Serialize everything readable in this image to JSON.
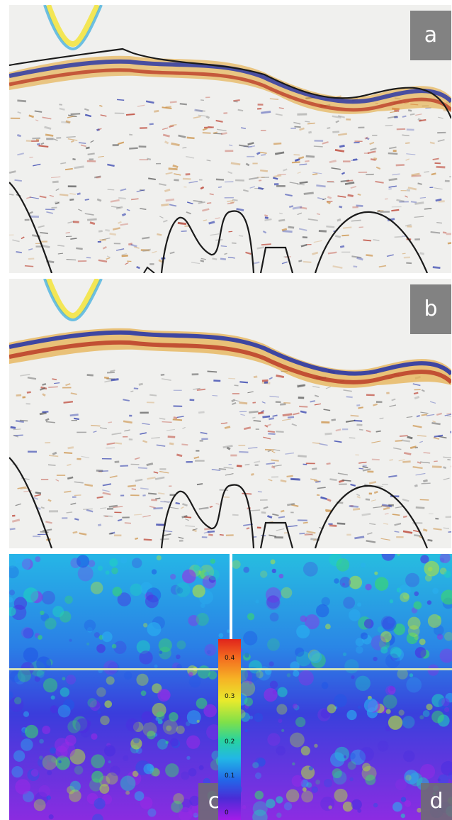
{
  "panels": [
    {
      "id": "a",
      "label": "a"
    },
    {
      "id": "b",
      "label": "b"
    },
    {
      "id": "c",
      "label": "c"
    },
    {
      "id": "d",
      "label": "d"
    }
  ],
  "colorbar": {
    "ticks": [
      "0.4",
      "0.3",
      "0.2",
      "0.1",
      "0"
    ],
    "colors": [
      "#e0241c",
      "#f6b325",
      "#e8ea2c",
      "#28d3a0",
      "#22b7e6",
      "#2366e8",
      "#a41ce8"
    ]
  }
}
